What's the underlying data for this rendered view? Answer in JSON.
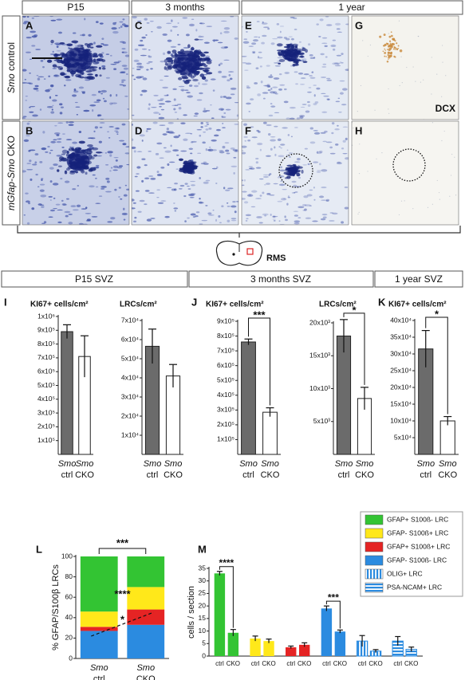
{
  "column_headers": [
    "P15",
    "3 months",
    "1 year"
  ],
  "row_labels": [
    [
      "Smo",
      " control"
    ],
    [
      "mGfap-Smo",
      " CKO"
    ]
  ],
  "panels": [
    "A",
    "C",
    "E",
    "G",
    "B",
    "D",
    "F",
    "H"
  ],
  "dcx_label": "DCX",
  "schematic_label": "RMS",
  "section_headers": [
    "P15 SVZ",
    "3 months SVZ",
    "1 year SVZ"
  ],
  "chart_data": [
    {
      "type": "bar",
      "panel": "I",
      "title": "KI67+ cells/cm²",
      "categories": [
        [
          "Smo",
          "ctrl"
        ],
        [
          "Smo",
          "CKO"
        ]
      ],
      "values": [
        890000,
        710000
      ],
      "errors": [
        50000,
        150000
      ],
      "colors": [
        "#6b6b6b",
        "#ffffff"
      ],
      "ylim": [
        0,
        1000000
      ],
      "yticks": [
        {
          "value": 100000,
          "label": "1x10⁵"
        },
        {
          "value": 200000,
          "label": "2x10⁵"
        },
        {
          "value": 300000,
          "label": "3x10⁵"
        },
        {
          "value": 400000,
          "label": "4x10⁵"
        },
        {
          "value": 500000,
          "label": "5x10⁵"
        },
        {
          "value": 600000,
          "label": "6x10⁵"
        },
        {
          "value": 700000,
          "label": "7x10⁵"
        },
        {
          "value": 800000,
          "label": "8x10⁵"
        },
        {
          "value": 900000,
          "label": "9x10⁵"
        },
        {
          "value": 1000000,
          "label": "1x10⁶"
        }
      ]
    },
    {
      "type": "bar",
      "title": "LRCs/cm²",
      "categories": [
        [
          "Smo",
          "ctrl"
        ],
        [
          "Smo",
          "CKO"
        ]
      ],
      "values": [
        56500,
        41000
      ],
      "errors": [
        9000,
        6000
      ],
      "colors": [
        "#6b6b6b",
        "#ffffff"
      ],
      "ylim": [
        0,
        70000
      ],
      "yticks": [
        {
          "value": 10000,
          "label": "1x10⁴"
        },
        {
          "value": 20000,
          "label": "2x10⁴"
        },
        {
          "value": 30000,
          "label": "3x10⁴"
        },
        {
          "value": 40000,
          "label": "4x10⁴"
        },
        {
          "value": 50000,
          "label": "5x10⁴"
        },
        {
          "value": 60000,
          "label": "6x10⁴"
        },
        {
          "value": 70000,
          "label": "7x10⁴"
        }
      ]
    },
    {
      "type": "bar",
      "panel": "J",
      "title": "KI67+ cells/cm²",
      "categories": [
        [
          "Smo",
          "ctrl"
        ],
        [
          "Smo",
          "CKO"
        ]
      ],
      "values": [
        760000,
        285000
      ],
      "errors": [
        20000,
        30000
      ],
      "colors": [
        "#6b6b6b",
        "#ffffff"
      ],
      "ylim": [
        0,
        900000
      ],
      "annotation": "***",
      "yticks": [
        {
          "value": 100000,
          "label": "1x10⁵"
        },
        {
          "value": 200000,
          "label": "2x10⁵"
        },
        {
          "value": 300000,
          "label": "3x10⁵"
        },
        {
          "value": 400000,
          "label": "4x10⁵"
        },
        {
          "value": 500000,
          "label": "5x10⁵"
        },
        {
          "value": 600000,
          "label": "6x10⁵"
        },
        {
          "value": 700000,
          "label": "7x10⁵"
        },
        {
          "value": 800000,
          "label": "8x10⁵"
        },
        {
          "value": 900000,
          "label": "9x10⁵"
        }
      ]
    },
    {
      "type": "bar",
      "title": "LRCs/cm²",
      "categories": [
        [
          "Smo",
          "ctrl"
        ],
        [
          "Smo",
          "CKO"
        ]
      ],
      "values": [
        18000,
        8500
      ],
      "errors": [
        2500,
        1700
      ],
      "colors": [
        "#6b6b6b",
        "#ffffff"
      ],
      "ylim": [
        0,
        20000
      ],
      "annotation": "*",
      "yticks": [
        {
          "value": 5000,
          "label": "5x10³"
        },
        {
          "value": 10000,
          "label": "10x10³"
        },
        {
          "value": 15000,
          "label": "15x10³"
        },
        {
          "value": 20000,
          "label": "20x10³"
        }
      ]
    },
    {
      "type": "bar",
      "panel": "K",
      "title": "KI67+ cells/cm²",
      "categories": [
        [
          "Smo",
          "ctrl"
        ],
        [
          "Smo",
          "CKO"
        ]
      ],
      "values": [
        315000,
        100000
      ],
      "errors": [
        55000,
        13000
      ],
      "colors": [
        "#6b6b6b",
        "#ffffff"
      ],
      "ylim": [
        0,
        400000
      ],
      "annotation": "*",
      "yticks": [
        {
          "value": 50000,
          "label": "5x10⁴"
        },
        {
          "value": 100000,
          "label": "10x10⁴"
        },
        {
          "value": 150000,
          "label": "15x10⁴"
        },
        {
          "value": 200000,
          "label": "20x10⁴"
        },
        {
          "value": 250000,
          "label": "25x10⁴"
        },
        {
          "value": 300000,
          "label": "30x10⁴"
        },
        {
          "value": 350000,
          "label": "35x10⁴"
        },
        {
          "value": 400000,
          "label": "40x10⁴"
        }
      ]
    },
    {
      "type": "stacked_bar",
      "panel": "L",
      "y_label": "% GFAP/S100β LRCs",
      "categories": [
        [
          "Smo",
          "ctrl"
        ],
        [
          "Smo",
          "CKO"
        ]
      ],
      "series": [
        {
          "color": "#2b8be0",
          "values": [
            27,
            33
          ]
        },
        {
          "color": "#e52424",
          "values": [
            4,
            15
          ]
        },
        {
          "color": "#ffe81a",
          "values": [
            15,
            22
          ]
        },
        {
          "color": "#33c433",
          "values": [
            54,
            30
          ]
        }
      ],
      "ylim": [
        0,
        100
      ],
      "yticks": [
        0,
        20,
        40,
        60,
        80,
        100
      ],
      "annotations": [
        "***",
        "****",
        "*"
      ]
    },
    {
      "type": "grouped_bar",
      "panel": "M",
      "y_label": "cells / section",
      "categories": [
        "ctrl",
        "CKO"
      ],
      "series": [
        {
          "name": "GFAP+ S100ß- LRC",
          "color": "#33c433",
          "values": [
            33,
            9.3
          ],
          "errors": [
            0.8,
            1.3
          ],
          "annotation": "****"
        },
        {
          "name": "GFAP- S100ß+ LRC",
          "color": "#ffe81a",
          "values": [
            7,
            6
          ],
          "errors": [
            1,
            0.8
          ]
        },
        {
          "name": "GFAP+ S100ß+ LRC",
          "color": "#e52424",
          "values": [
            3.5,
            4.5
          ],
          "errors": [
            0.5,
            0.8
          ]
        },
        {
          "name": "GFAP- S100ß- LRC",
          "color": "#2b8be0",
          "values": [
            19,
            9.8
          ],
          "errors": [
            1,
            0.6
          ],
          "annotation": "***"
        },
        {
          "name": "OLIG+ LRC",
          "color": "#2b8be0",
          "pattern": "vertical-stripes",
          "values": [
            6,
            2
          ],
          "errors": [
            2.2,
            0.6
          ]
        },
        {
          "name": "PSA-NCAM+ LRC",
          "color": "#2b8be0",
          "pattern": "horizontal-stripes",
          "values": [
            6,
            2.7
          ],
          "errors": [
            1.8,
            0.9
          ]
        }
      ],
      "ylim": [
        0,
        35
      ],
      "yticks": [
        0,
        5,
        10,
        15,
        20,
        25,
        30,
        35
      ]
    }
  ]
}
